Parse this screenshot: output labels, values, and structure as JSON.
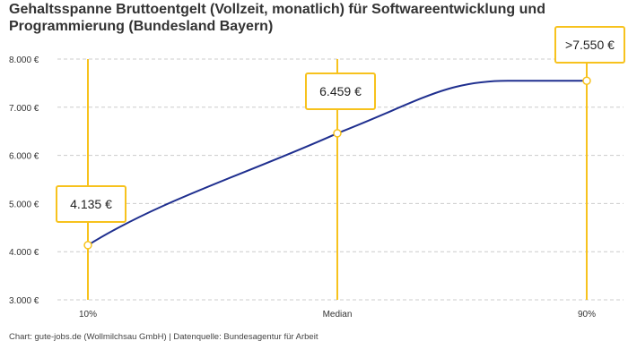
{
  "chart_data": {
    "type": "line",
    "title": "Gehaltsspanne Bruttoentgelt (Vollzeit, monatlich) für Softwareentwicklung und Programmierung (Bundesland Bayern)",
    "categories": [
      "10%",
      "Median",
      "90%"
    ],
    "values": [
      4135,
      6459,
      7550
    ],
    "data_labels": [
      "4.135 €",
      "6.459 €",
      ">7.550 €"
    ],
    "ylim": [
      3000,
      8000
    ],
    "yticks": [
      3000,
      4000,
      5000,
      6000,
      7000,
      8000
    ],
    "ytick_labels": [
      "3.000 €",
      "4.000 €",
      "5.000 €",
      "6.000 €",
      "7.000 €",
      "8.000 €"
    ],
    "grid": true,
    "colors": {
      "line": "#1f2f8f",
      "accent": "#f7c21d",
      "grid": "#cccccc"
    },
    "footer": "Chart: gute-jobs.de (Wollmilchsau GmbH) | Datenquelle: Bundesagentur für Arbeit"
  }
}
